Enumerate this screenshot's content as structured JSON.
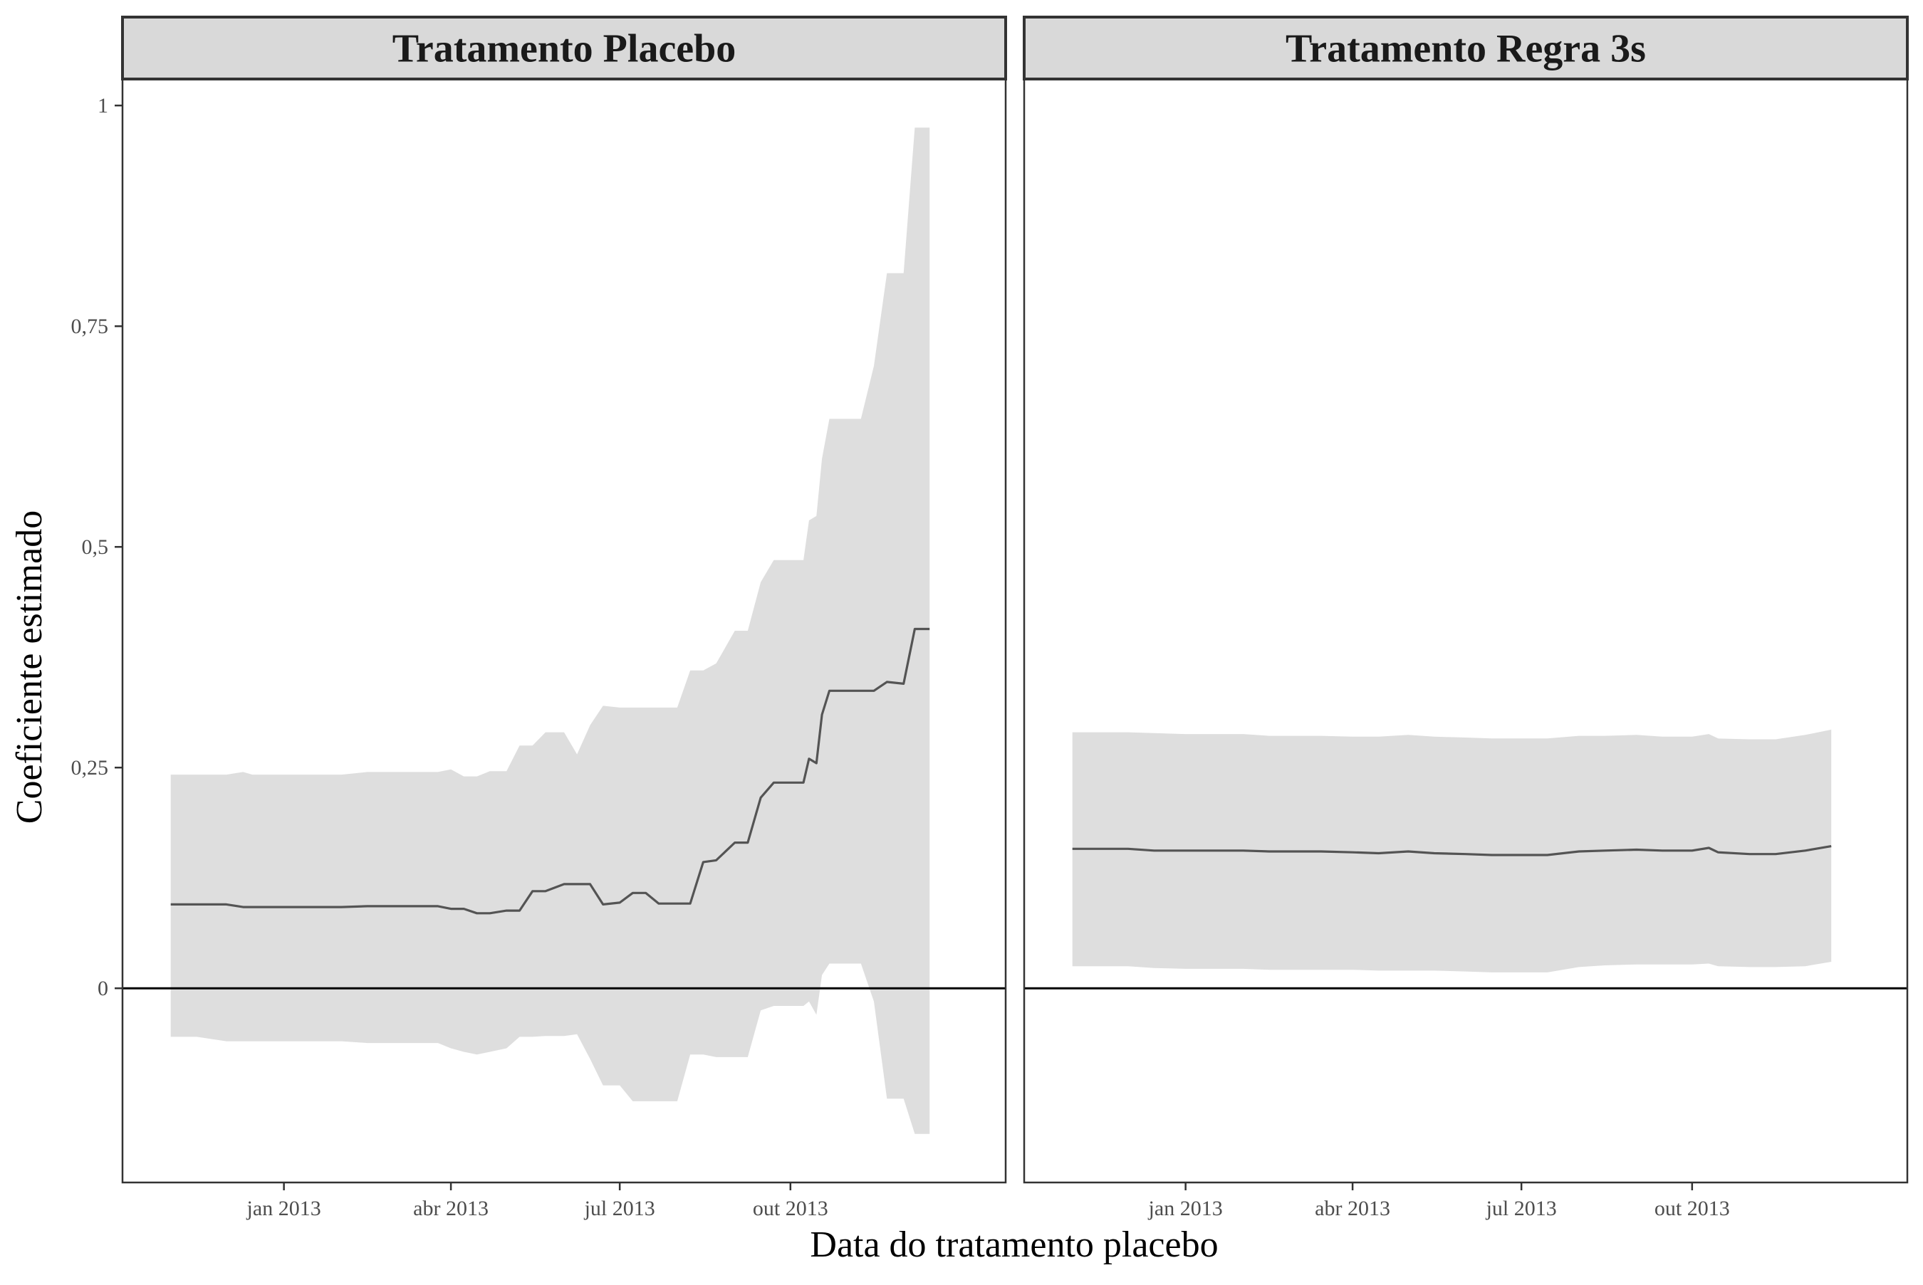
{
  "chart_data": {
    "type": "line",
    "xlabel": "Data do tratamento placebo",
    "ylabel": "Coeficiente estimado",
    "x_ticks": [
      "2013-01-01",
      "2013-04-01",
      "2013-07-01",
      "2013-10-01"
    ],
    "x_tick_labels": [
      "jan 2013",
      "abr 2013",
      "jul 2013",
      "out 2013"
    ],
    "xlim": [
      "2012-10-06",
      "2014-01-25"
    ],
    "y_ticks": [
      0,
      0.25,
      0.5,
      0.75,
      1
    ],
    "y_tick_labels": [
      "0",
      "0,25",
      "0,5",
      "0,75",
      "1"
    ],
    "ylim": [
      -0.22,
      1.03
    ],
    "reference_line": 0,
    "grid": false,
    "colors": {
      "ribbon": "#dedede",
      "line": "#545454",
      "reference": "#000000",
      "strip_fill": "#d9d9d9",
      "frame": "#333333"
    },
    "panels": [
      {
        "title": "Tratamento Placebo",
        "series": [
          {
            "x": [
              "2012-11-01",
              "2012-11-15",
              "2012-12-01",
              "2012-12-10",
              "2012-12-15",
              "2013-01-01",
              "2013-01-15",
              "2013-02-01",
              "2013-02-15",
              "2013-03-01",
              "2013-03-15",
              "2013-03-25",
              "2013-04-01",
              "2013-04-08",
              "2013-04-15",
              "2013-04-22",
              "2013-05-01",
              "2013-05-08",
              "2013-05-15",
              "2013-05-22",
              "2013-06-01",
              "2013-06-08",
              "2013-06-15",
              "2013-06-22",
              "2013-07-01",
              "2013-07-08",
              "2013-07-15",
              "2013-07-22",
              "2013-08-01",
              "2013-08-08",
              "2013-08-15",
              "2013-08-22",
              "2013-09-01",
              "2013-09-04",
              "2013-09-08",
              "2013-09-15",
              "2013-09-22",
              "2013-10-01",
              "2013-10-05",
              "2013-10-08",
              "2013-10-11",
              "2013-10-15",
              "2013-10-18",
              "2013-10-22",
              "2013-11-01",
              "2013-11-08",
              "2013-11-15",
              "2013-11-22",
              "2013-12-01",
              "2013-12-07",
              "2013-12-15"
            ],
            "y": [
              0.095,
              0.095,
              0.095,
              0.092,
              0.092,
              0.092,
              0.092,
              0.092,
              0.093,
              0.093,
              0.093,
              0.093,
              0.09,
              0.09,
              0.085,
              0.085,
              0.088,
              0.088,
              0.11,
              0.11,
              0.118,
              0.118,
              0.118,
              0.095,
              0.097,
              0.108,
              0.108,
              0.096,
              0.096,
              0.096,
              0.143,
              0.145,
              0.165,
              0.165,
              0.165,
              0.216,
              0.233,
              0.233,
              0.233,
              0.233,
              0.26,
              0.255,
              0.31,
              0.337,
              0.337,
              0.337,
              0.337,
              0.347,
              0.345,
              0.407,
              0.407
            ],
            "lower": [
              -0.055,
              -0.055,
              -0.06,
              -0.06,
              -0.06,
              -0.06,
              -0.06,
              -0.06,
              -0.062,
              -0.062,
              -0.062,
              -0.062,
              -0.068,
              -0.072,
              -0.075,
              -0.072,
              -0.068,
              -0.055,
              -0.055,
              -0.054,
              -0.054,
              -0.052,
              -0.08,
              -0.11,
              -0.11,
              -0.128,
              -0.128,
              -0.128,
              -0.128,
              -0.075,
              -0.075,
              -0.078,
              -0.078,
              -0.078,
              -0.078,
              -0.025,
              -0.02,
              -0.02,
              -0.02,
              -0.02,
              -0.015,
              -0.03,
              0.015,
              0.028,
              0.028,
              0.028,
              -0.015,
              -0.125,
              -0.125,
              -0.165,
              -0.165
            ],
            "upper": [
              0.242,
              0.242,
              0.242,
              0.245,
              0.242,
              0.242,
              0.242,
              0.242,
              0.245,
              0.245,
              0.245,
              0.245,
              0.248,
              0.24,
              0.24,
              0.246,
              0.246,
              0.275,
              0.275,
              0.29,
              0.29,
              0.265,
              0.298,
              0.32,
              0.318,
              0.318,
              0.318,
              0.318,
              0.318,
              0.36,
              0.36,
              0.368,
              0.405,
              0.405,
              0.405,
              0.46,
              0.485,
              0.485,
              0.485,
              0.485,
              0.53,
              0.535,
              0.6,
              0.645,
              0.645,
              0.645,
              0.705,
              0.81,
              0.81,
              0.975,
              0.975
            ]
          }
        ]
      },
      {
        "title": "Tratamento Regra 3s",
        "series": [
          {
            "x": [
              "2012-11-01",
              "2012-11-15",
              "2012-12-01",
              "2012-12-15",
              "2013-01-01",
              "2013-01-15",
              "2013-02-01",
              "2013-02-15",
              "2013-03-01",
              "2013-03-15",
              "2013-04-01",
              "2013-04-15",
              "2013-05-01",
              "2013-05-15",
              "2013-06-01",
              "2013-06-15",
              "2013-07-01",
              "2013-07-15",
              "2013-08-01",
              "2013-08-15",
              "2013-09-01",
              "2013-09-15",
              "2013-10-01",
              "2013-10-10",
              "2013-10-15",
              "2013-11-01",
              "2013-11-15",
              "2013-12-01",
              "2013-12-15"
            ],
            "y": [
              0.158,
              0.158,
              0.158,
              0.156,
              0.156,
              0.156,
              0.156,
              0.155,
              0.155,
              0.155,
              0.154,
              0.153,
              0.155,
              0.153,
              0.152,
              0.151,
              0.151,
              0.151,
              0.155,
              0.156,
              0.157,
              0.156,
              0.156,
              0.159,
              0.154,
              0.152,
              0.152,
              0.156,
              0.161
            ],
            "lower": [
              0.025,
              0.025,
              0.025,
              0.023,
              0.022,
              0.022,
              0.022,
              0.021,
              0.021,
              0.021,
              0.021,
              0.02,
              0.02,
              0.02,
              0.019,
              0.018,
              0.018,
              0.018,
              0.024,
              0.026,
              0.027,
              0.027,
              0.027,
              0.028,
              0.025,
              0.024,
              0.024,
              0.025,
              0.03
            ],
            "upper": [
              0.29,
              0.29,
              0.29,
              0.289,
              0.288,
              0.288,
              0.288,
              0.286,
              0.286,
              0.286,
              0.285,
              0.285,
              0.287,
              0.285,
              0.284,
              0.283,
              0.283,
              0.283,
              0.286,
              0.286,
              0.287,
              0.285,
              0.285,
              0.288,
              0.283,
              0.282,
              0.282,
              0.287,
              0.293
            ]
          }
        ]
      }
    ]
  }
}
